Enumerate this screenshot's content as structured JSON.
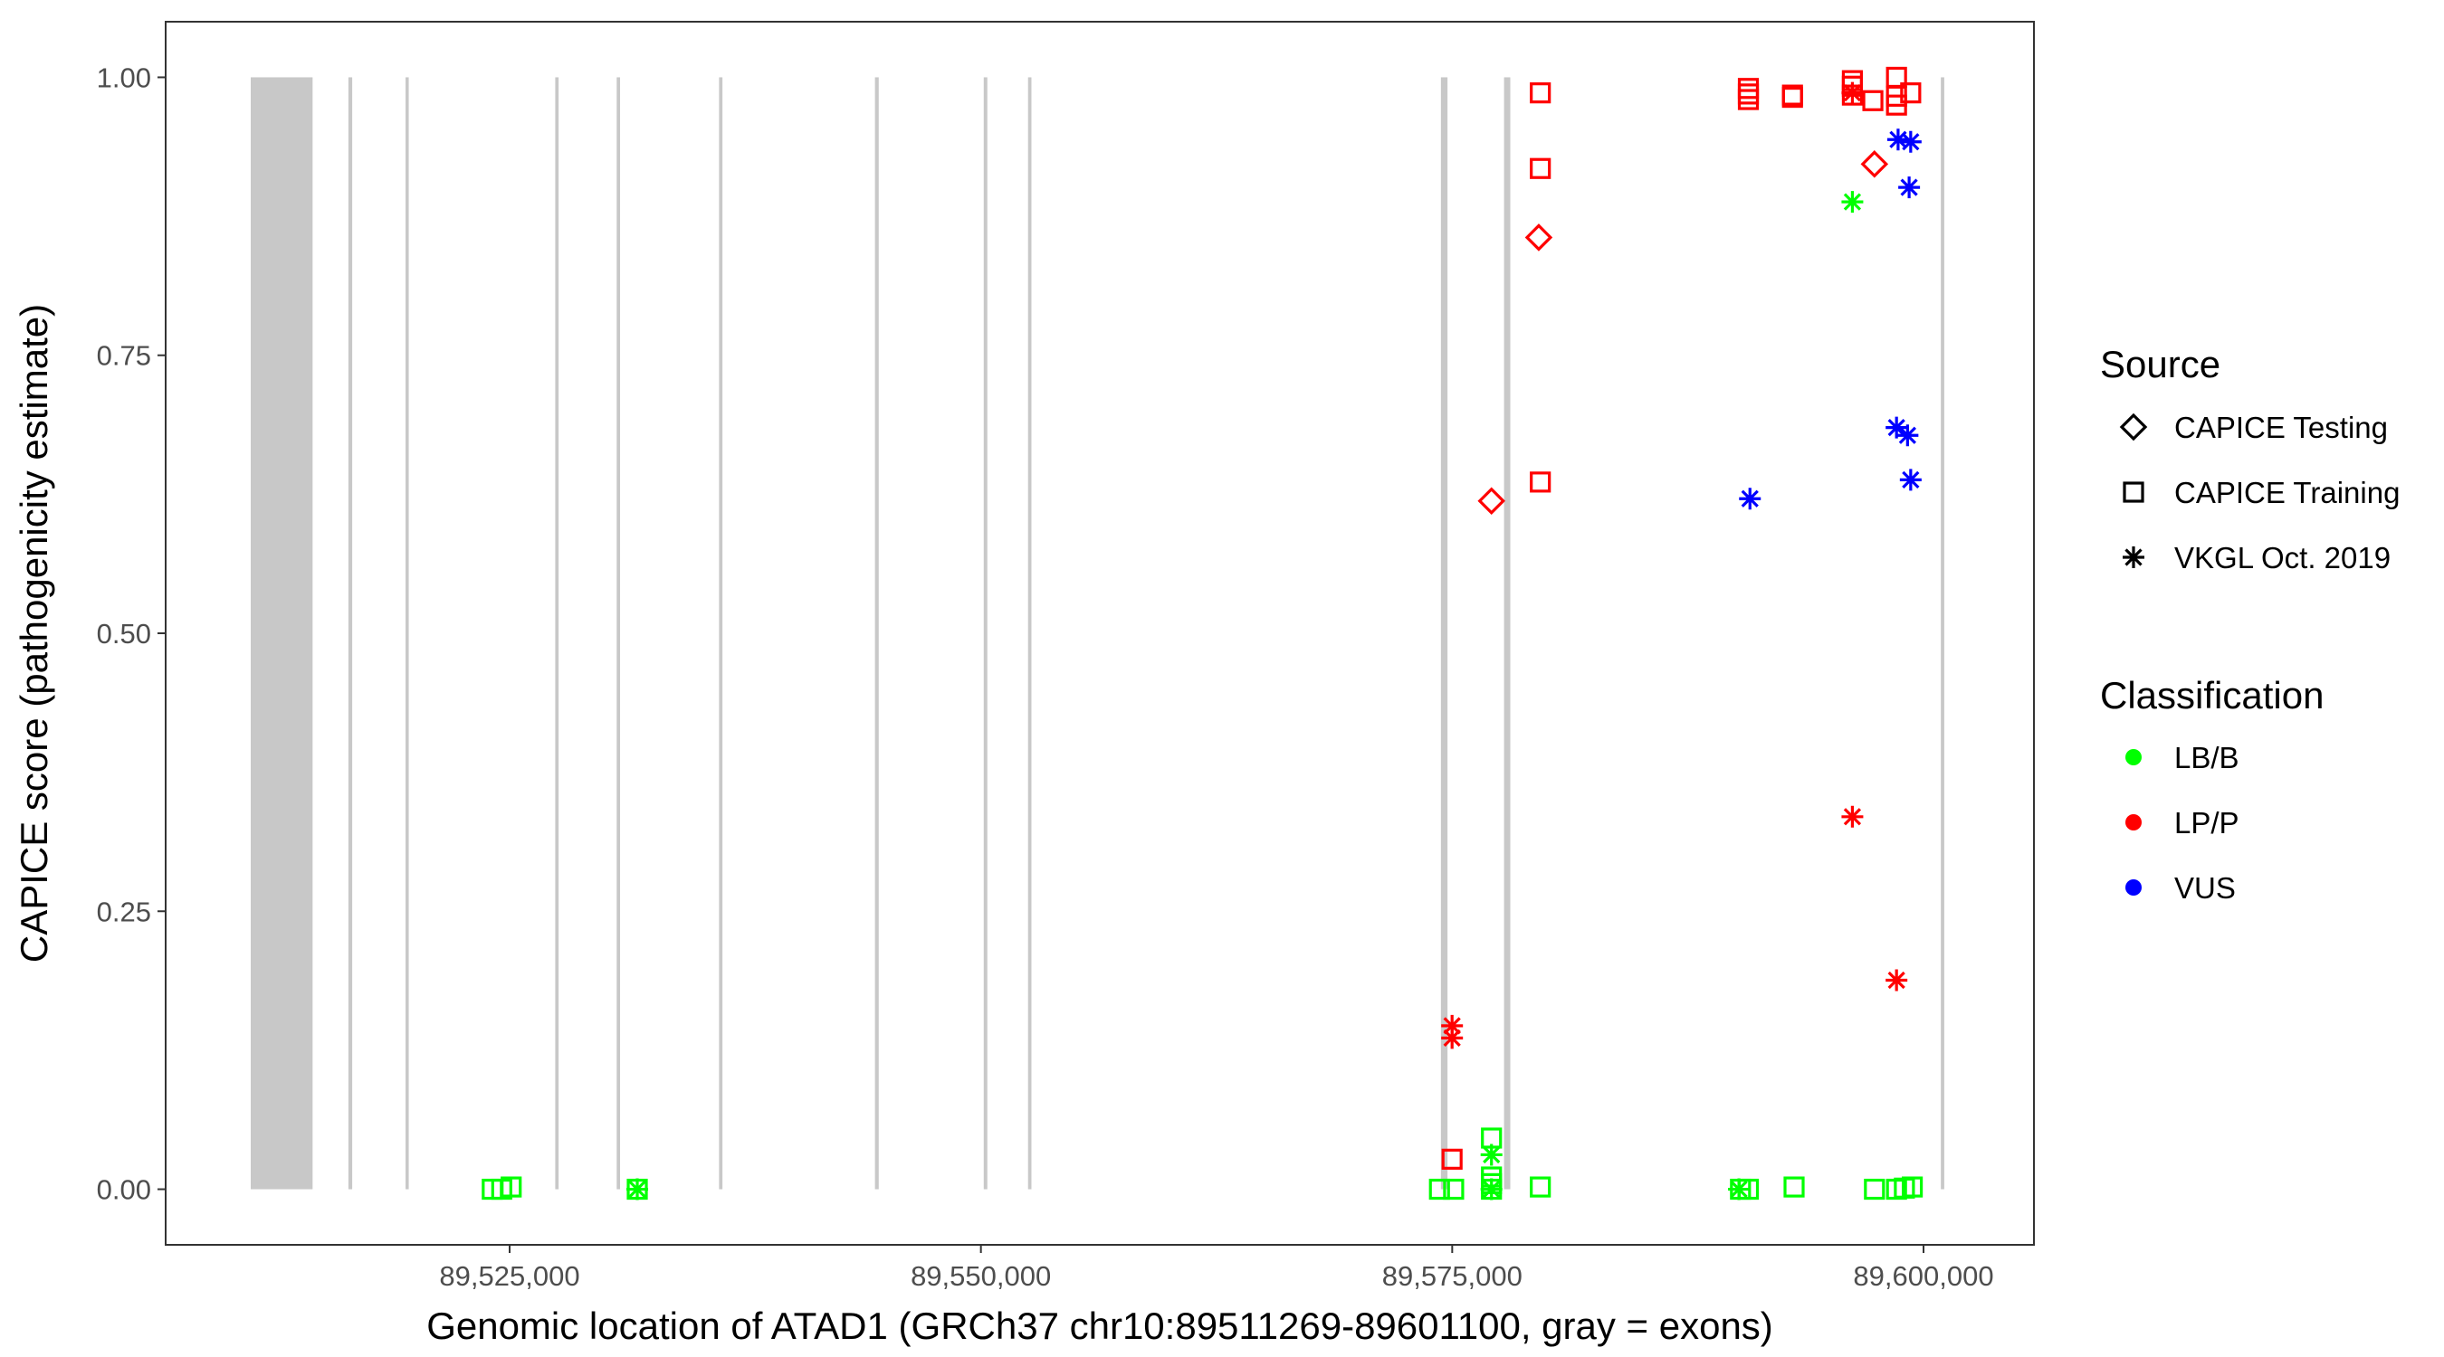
{
  "chart_data": {
    "type": "scatter",
    "xlabel": "Genomic location of ATAD1 (GRCh37 chr10:89511269-89601100, gray = exons)",
    "ylabel": "CAPICE score (pathogenicity estimate)",
    "xlim": [
      89506755,
      89605858
    ],
    "ylim": [
      -0.05,
      1.05
    ],
    "x_ticks": [
      89525000,
      89550000,
      89575000,
      89600000
    ],
    "x_tick_labels": [
      "89,525,000",
      "89,550,000",
      "89,575,000",
      "89,600,000"
    ],
    "y_ticks": [
      0,
      0.25,
      0.5,
      0.75,
      1.0
    ],
    "y_tick_labels": [
      "0.00",
      "0.25",
      "0.50",
      "0.75",
      "1.00"
    ],
    "grid": false,
    "exon_color": "#C8C8C8",
    "exons": [
      [
        89511269,
        89514550
      ],
      [
        89516450,
        89516650
      ],
      [
        89519480,
        89519650
      ],
      [
        89527420,
        89527600
      ],
      [
        89530680,
        89530860
      ],
      [
        89536110,
        89536290
      ],
      [
        89544380,
        89544580
      ],
      [
        89550150,
        89550340
      ],
      [
        89552500,
        89552680
      ],
      [
        89574400,
        89574750
      ],
      [
        89577750,
        89578080
      ],
      [
        89600920,
        89601100
      ]
    ],
    "legend": {
      "placement": "right",
      "source_title": "Source",
      "source_items": [
        {
          "label": "CAPICE Testing",
          "shape": "diamond"
        },
        {
          "label": "CAPICE Training",
          "shape": "square"
        },
        {
          "label": "VKGL Oct. 2019",
          "shape": "asterisk"
        }
      ],
      "class_title": "Classification",
      "class_items": [
        {
          "label": "LB/B",
          "color": "#00FF00"
        },
        {
          "label": "LP/P",
          "color": "#FF0000"
        },
        {
          "label": "VUS",
          "color": "#0000FF"
        }
      ]
    },
    "points": [
      {
        "x": 89579591,
        "y": 0.856,
        "source": "CAPICE Testing",
        "class": "LP/P"
      },
      {
        "x": 89577083,
        "y": 0.619,
        "source": "CAPICE Testing",
        "class": "LP/P"
      },
      {
        "x": 89597398,
        "y": 0.922,
        "source": "CAPICE Testing",
        "class": "LP/P"
      },
      {
        "x": 89579674,
        "y": 0.986,
        "source": "CAPICE Training",
        "class": "LP/P"
      },
      {
        "x": 89579674,
        "y": 0.918,
        "source": "CAPICE Training",
        "class": "LP/P"
      },
      {
        "x": 89579674,
        "y": 0.636,
        "source": "CAPICE Training",
        "class": "LP/P"
      },
      {
        "x": 89574993,
        "y": 0.027,
        "source": "CAPICE Training",
        "class": "LP/P"
      },
      {
        "x": 89590710,
        "y": 0.99,
        "source": "CAPICE Training",
        "class": "LP/P"
      },
      {
        "x": 89590710,
        "y": 0.985,
        "source": "CAPICE Training",
        "class": "LP/P"
      },
      {
        "x": 89590710,
        "y": 0.98,
        "source": "CAPICE Training",
        "class": "LP/P"
      },
      {
        "x": 89593050,
        "y": 0.984,
        "source": "CAPICE Training",
        "class": "LP/P"
      },
      {
        "x": 89593050,
        "y": 0.982,
        "source": "CAPICE Training",
        "class": "LP/P"
      },
      {
        "x": 89596227,
        "y": 0.997,
        "source": "CAPICE Training",
        "class": "LP/P"
      },
      {
        "x": 89596227,
        "y": 0.992,
        "source": "CAPICE Training",
        "class": "LP/P"
      },
      {
        "x": 89596227,
        "y": 0.984,
        "source": "CAPICE Training",
        "class": "LP/P"
      },
      {
        "x": 89597314,
        "y": 0.979,
        "source": "CAPICE Training",
        "class": "LP/P"
      },
      {
        "x": 89598568,
        "y": 1.0,
        "source": "CAPICE Training",
        "class": "LP/P"
      },
      {
        "x": 89598568,
        "y": 0.983,
        "source": "CAPICE Training",
        "class": "LP/P"
      },
      {
        "x": 89598568,
        "y": 0.975,
        "source": "CAPICE Training",
        "class": "LP/P"
      },
      {
        "x": 89599320,
        "y": 0.986,
        "source": "CAPICE Training",
        "class": "LP/P"
      },
      {
        "x": 89524080,
        "y": 0.0,
        "source": "CAPICE Training",
        "class": "LB/B"
      },
      {
        "x": 89524582,
        "y": 0.0,
        "source": "CAPICE Training",
        "class": "LB/B"
      },
      {
        "x": 89525084,
        "y": 0.002,
        "source": "CAPICE Training",
        "class": "LB/B"
      },
      {
        "x": 89531772,
        "y": 0.0,
        "source": "CAPICE Training",
        "class": "LB/B"
      },
      {
        "x": 89574324,
        "y": 0.0,
        "source": "CAPICE Training",
        "class": "LB/B"
      },
      {
        "x": 89575076,
        "y": 0.0,
        "source": "CAPICE Training",
        "class": "LB/B"
      },
      {
        "x": 89577083,
        "y": 0.046,
        "source": "CAPICE Training",
        "class": "LB/B"
      },
      {
        "x": 89577083,
        "y": 0.011,
        "source": "CAPICE Training",
        "class": "LB/B"
      },
      {
        "x": 89577083,
        "y": 0.005,
        "source": "CAPICE Training",
        "class": "LB/B"
      },
      {
        "x": 89577083,
        "y": 0.0,
        "source": "CAPICE Training",
        "class": "LB/B"
      },
      {
        "x": 89579674,
        "y": 0.002,
        "source": "CAPICE Training",
        "class": "LB/B"
      },
      {
        "x": 89590292,
        "y": 0.0,
        "source": "CAPICE Training",
        "class": "LB/B"
      },
      {
        "x": 89590710,
        "y": 0.0,
        "source": "CAPICE Training",
        "class": "LB/B"
      },
      {
        "x": 89593134,
        "y": 0.002,
        "source": "CAPICE Training",
        "class": "LB/B"
      },
      {
        "x": 89597398,
        "y": 0.0,
        "source": "CAPICE Training",
        "class": "LB/B"
      },
      {
        "x": 89598568,
        "y": 0.0,
        "source": "CAPICE Training",
        "class": "LB/B"
      },
      {
        "x": 89598986,
        "y": 0.001,
        "source": "CAPICE Training",
        "class": "LB/B"
      },
      {
        "x": 89599404,
        "y": 0.002,
        "source": "CAPICE Training",
        "class": "LB/B"
      },
      {
        "x": 89531772,
        "y": 0.0,
        "source": "VKGL Oct. 2019",
        "class": "LB/B"
      },
      {
        "x": 89577083,
        "y": 0.031,
        "source": "VKGL Oct. 2019",
        "class": "LB/B"
      },
      {
        "x": 89577083,
        "y": 0.0,
        "source": "VKGL Oct. 2019",
        "class": "LB/B"
      },
      {
        "x": 89590209,
        "y": 0.0,
        "source": "VKGL Oct. 2019",
        "class": "LB/B"
      },
      {
        "x": 89596227,
        "y": 0.888,
        "source": "VKGL Oct. 2019",
        "class": "LB/B"
      },
      {
        "x": 89574993,
        "y": 0.147,
        "source": "VKGL Oct. 2019",
        "class": "LP/P"
      },
      {
        "x": 89574993,
        "y": 0.136,
        "source": "VKGL Oct. 2019",
        "class": "LP/P"
      },
      {
        "x": 89596227,
        "y": 0.335,
        "source": "VKGL Oct. 2019",
        "class": "LP/P"
      },
      {
        "x": 89598568,
        "y": 0.188,
        "source": "VKGL Oct. 2019",
        "class": "LP/P"
      },
      {
        "x": 89596227,
        "y": 0.986,
        "source": "VKGL Oct. 2019",
        "class": "LP/P"
      },
      {
        "x": 89590793,
        "y": 0.621,
        "source": "VKGL Oct. 2019",
        "class": "VUS"
      },
      {
        "x": 89598568,
        "y": 0.685,
        "source": "VKGL Oct. 2019",
        "class": "VUS"
      },
      {
        "x": 89599153,
        "y": 0.678,
        "source": "VKGL Oct. 2019",
        "class": "VUS"
      },
      {
        "x": 89599320,
        "y": 0.638,
        "source": "VKGL Oct. 2019",
        "class": "VUS"
      },
      {
        "x": 89598652,
        "y": 0.944,
        "source": "VKGL Oct. 2019",
        "class": "VUS"
      },
      {
        "x": 89599320,
        "y": 0.942,
        "source": "VKGL Oct. 2019",
        "class": "VUS"
      },
      {
        "x": 89599237,
        "y": 0.901,
        "source": "VKGL Oct. 2019",
        "class": "VUS"
      }
    ]
  }
}
